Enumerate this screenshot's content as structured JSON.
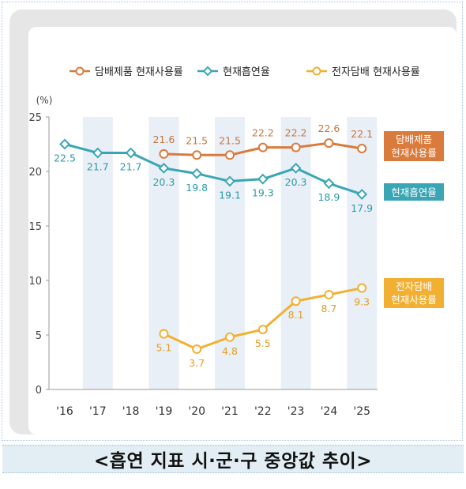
{
  "caption": "<흡연 지표 시·군·구 중앙값 추이>",
  "chart_data": {
    "type": "line",
    "title": "",
    "xlabel": "",
    "ylabel": "(%)",
    "categories": [
      "'16",
      "'17",
      "'18",
      "'19",
      "'20",
      "'21",
      "'22",
      "'23",
      "'24",
      "'25"
    ],
    "ylim": [
      0,
      25
    ],
    "yticks": [
      0,
      5,
      10,
      15,
      20,
      25
    ],
    "shaded_categories": [
      "'17",
      "'19",
      "'21",
      "'23",
      "'25"
    ],
    "legend_position": "top",
    "series": [
      {
        "name": "담배제품 현재사용률",
        "end_label": [
          "담배제품",
          "현재사용률"
        ],
        "color": "#d97b3c",
        "label_color": "#c4763d",
        "marker": "circle",
        "label_position": "above",
        "values": [
          null,
          null,
          null,
          21.6,
          21.5,
          21.5,
          22.2,
          22.2,
          22.6,
          22.1
        ]
      },
      {
        "name": "현재흡연율",
        "end_label": [
          "현재흡연율"
        ],
        "color": "#3aa6b5",
        "label_color": "#2b9aa8",
        "marker": "diamond",
        "label_position": "below",
        "values": [
          22.5,
          21.7,
          21.7,
          20.3,
          19.8,
          19.1,
          19.3,
          20.3,
          18.9,
          17.9
        ]
      },
      {
        "name": "전자담배 현재사용률",
        "end_label": [
          "전자담배",
          "현재사용률"
        ],
        "color": "#f2b033",
        "label_color": "#e39d22",
        "marker": "circle",
        "label_position": "below",
        "values": [
          null,
          null,
          null,
          5.1,
          3.7,
          4.8,
          5.5,
          8.1,
          8.7,
          9.3
        ]
      }
    ]
  }
}
